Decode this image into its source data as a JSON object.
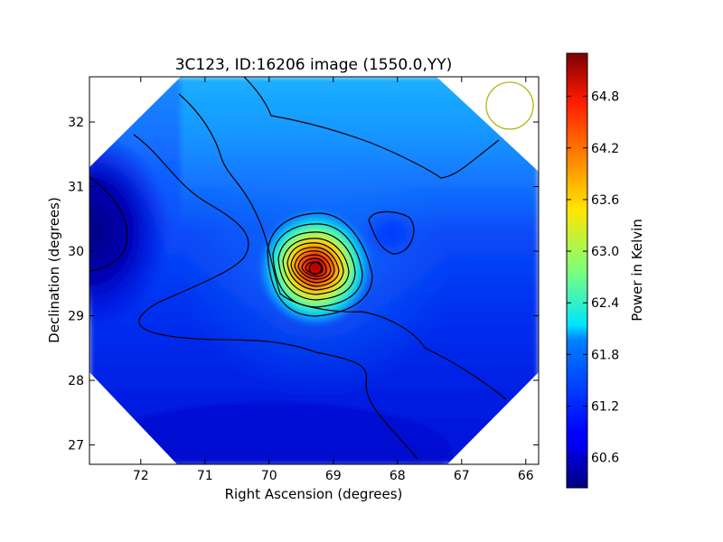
{
  "chart_data": {
    "type": "heatmap",
    "title": "3C123, ID:16206 image (1550.0,YY)",
    "xlabel": "Right Ascension (degrees)",
    "ylabel": "Declination (degrees)",
    "xlim": [
      72.8,
      65.8
    ],
    "ylim": [
      26.7,
      32.7
    ],
    "x_ticks": [
      72,
      71,
      70,
      69,
      68,
      67,
      66
    ],
    "y_ticks": [
      27,
      28,
      29,
      30,
      31,
      32
    ],
    "colorbar": {
      "label": "Power in Kelvin",
      "range": [
        60.25,
        65.3
      ],
      "ticks": [
        60.6,
        61.2,
        61.8,
        62.4,
        63.0,
        63.6,
        64.2,
        64.8
      ],
      "colormap": "jet"
    },
    "peak": {
      "ra": 69.22,
      "dec": 29.68,
      "value": 65.2
    },
    "background_level": 61.0,
    "minimum": {
      "ra": 72.8,
      "dec": 30.1,
      "value": 60.3
    },
    "secondary_minimum": {
      "ra": 68.1,
      "dec": 30.2,
      "value": 60.85
    },
    "beam_circle": {
      "ra": 66.25,
      "dec": 32.2,
      "color": "#b5b51a"
    },
    "grid": false
  }
}
